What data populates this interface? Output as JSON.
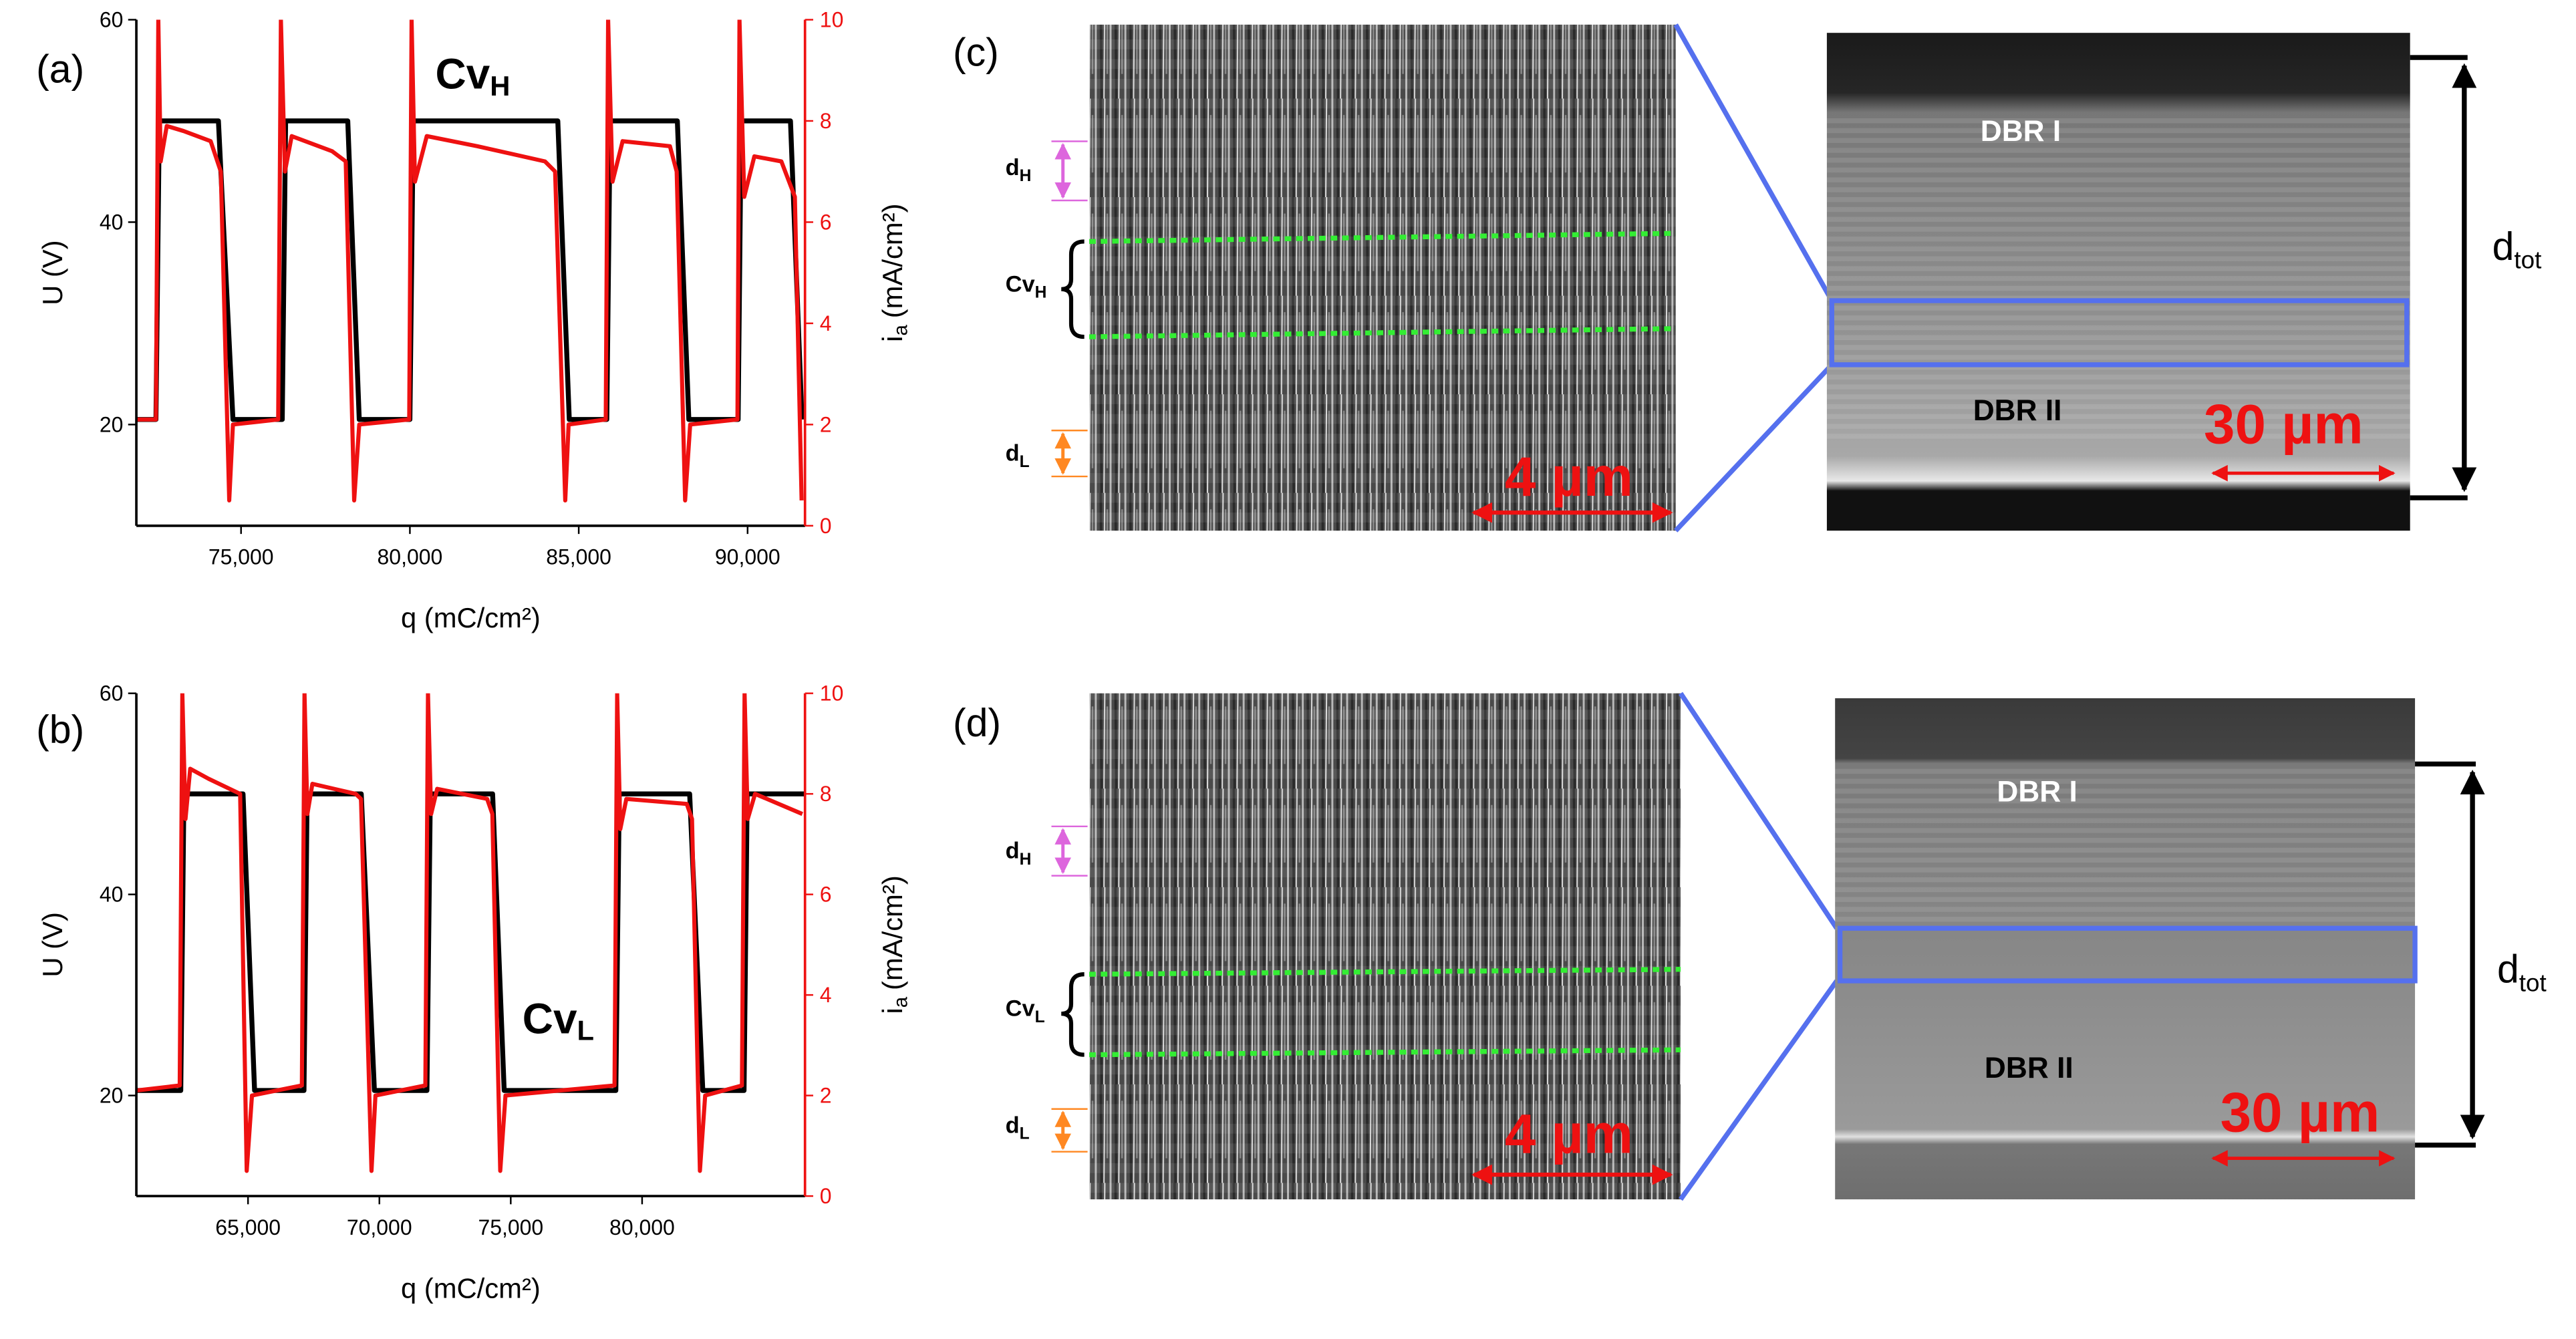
{
  "chart_data": [
    {
      "type": "line",
      "panel_label": "(a)",
      "annotation": {
        "text": "Cv",
        "subscript": "H"
      },
      "x_label": "q (mC/cm²)",
      "y_label": "U (V)",
      "y2_label": {
        "symbol": "i",
        "subscript": "a",
        "unit": "(mA/cm²)"
      },
      "xlim": [
        71900,
        91700
      ],
      "xticks": [
        {
          "value": 75000,
          "label": "75,000"
        },
        {
          "value": 80000,
          "label": "80,000"
        },
        {
          "value": 85000,
          "label": "85,000"
        },
        {
          "value": 90000,
          "label": "90,000"
        }
      ],
      "ylim": [
        10,
        60
      ],
      "yticks": [
        20,
        40,
        60
      ],
      "y2lim": [
        0,
        10
      ],
      "y2ticks": [
        0,
        2,
        4,
        6,
        8,
        10
      ],
      "series": [
        {
          "color": "#000000",
          "axis": "y",
          "x": [
            71900,
            72480,
            72580,
            74330,
            74760,
            76220,
            76320,
            78160,
            78500,
            80000,
            80100,
            84380,
            84720,
            85830,
            85930,
            87920,
            88260,
            89720,
            89810,
            91270,
            91610
          ],
          "values": [
            20.5,
            20.5,
            50,
            50,
            20.5,
            20.5,
            50,
            50,
            20.5,
            20.5,
            50,
            50,
            20.5,
            20.5,
            50,
            50,
            20.5,
            20.5,
            50,
            50,
            20.5
          ]
        },
        {
          "color": "#ee1111",
          "axis": "y2",
          "x": [
            71900,
            72480,
            72550,
            72620,
            72800,
            73300,
            74100,
            74400,
            74650,
            74760,
            76100,
            76180,
            76300,
            76500,
            77700,
            78100,
            78350,
            78500,
            79980,
            80050,
            80150,
            80500,
            82000,
            84000,
            84300,
            84600,
            84700,
            85800,
            85870,
            86000,
            86300,
            87700,
            87900,
            88150,
            88300,
            89700,
            89760,
            89900,
            90200,
            91000,
            91400,
            91600
          ],
          "values": [
            2.1,
            2.1,
            10,
            7.2,
            7.9,
            7.8,
            7.6,
            7.0,
            0.5,
            2.0,
            2.1,
            10,
            7.0,
            7.7,
            7.4,
            7.2,
            0.5,
            2.0,
            2.1,
            10,
            6.8,
            7.7,
            7.5,
            7.2,
            7.0,
            0.5,
            2.0,
            2.1,
            10,
            6.8,
            7.6,
            7.5,
            7.0,
            0.5,
            2.0,
            2.1,
            10,
            6.5,
            7.3,
            7.2,
            6.5,
            0.5
          ]
        }
      ]
    },
    {
      "type": "line",
      "panel_label": "(b)",
      "annotation": {
        "text": "Cv",
        "subscript": "L"
      },
      "x_label": "q (mC/cm²)",
      "y_label": "U (V)",
      "y2_label": {
        "symbol": "i",
        "subscript": "a",
        "unit": "(mA/cm²)"
      },
      "xlim": [
        60750,
        86200
      ],
      "xticks": [
        {
          "value": 65000,
          "label": "65,000"
        },
        {
          "value": 70000,
          "label": "70,000"
        },
        {
          "value": 75000,
          "label": "75,000"
        },
        {
          "value": 80000,
          "label": "80,000"
        }
      ],
      "ylim": [
        10,
        60
      ],
      "yticks": [
        20,
        40,
        60
      ],
      "y2lim": [
        0,
        10
      ],
      "y2ticks": [
        0,
        2,
        4,
        6,
        8,
        10
      ],
      "series": [
        {
          "color": "#000000",
          "axis": "y",
          "x": [
            60750,
            62440,
            62560,
            64810,
            65250,
            67130,
            67250,
            69310,
            69810,
            71810,
            71940,
            74310,
            74750,
            79000,
            79130,
            81810,
            82310,
            83880,
            84000,
            86190
          ],
          "values": [
            20.5,
            20.5,
            50,
            50,
            20.5,
            20.5,
            50,
            50,
            20.5,
            20.5,
            50,
            50,
            20.5,
            20.5,
            50,
            50,
            20.5,
            20.5,
            50,
            50
          ]
        },
        {
          "color": "#ee1111",
          "axis": "y2",
          "x": [
            60750,
            62400,
            62500,
            62620,
            62800,
            63500,
            64700,
            64950,
            65150,
            67050,
            67150,
            67260,
            67450,
            69100,
            69300,
            69700,
            69850,
            71750,
            71850,
            71970,
            72200,
            74100,
            74300,
            74600,
            74800,
            78950,
            79050,
            79170,
            79400,
            81700,
            81900,
            82200,
            82400,
            83800,
            83900,
            84020,
            84300,
            86100
          ],
          "values": [
            2.1,
            2.2,
            10,
            7.5,
            8.5,
            8.3,
            8.0,
            0.5,
            2.0,
            2.2,
            10,
            7.6,
            8.2,
            8.0,
            7.9,
            0.5,
            2.0,
            2.2,
            10,
            7.6,
            8.1,
            7.9,
            7.6,
            0.5,
            2.0,
            2.2,
            10,
            7.3,
            7.9,
            7.8,
            7.5,
            0.5,
            2.0,
            2.2,
            10,
            7.5,
            8.0,
            7.6
          ]
        }
      ]
    }
  ],
  "panels": [
    {
      "label": "(c)",
      "d_high": {
        "text": "d",
        "subscript": "H"
      },
      "cavity": {
        "text": "Cv",
        "subscript": "H"
      },
      "d_low": {
        "text": "d",
        "subscript": "L"
      },
      "scale_left": "4 µm",
      "top_layer": "DBR I",
      "bottom_layer": "DBR II",
      "scale_right": "30 µm",
      "total": {
        "text": "d",
        "subscript": "tot"
      }
    },
    {
      "label": "(d)",
      "d_high": {
        "text": "d",
        "subscript": "H"
      },
      "cavity": {
        "text": "Cv",
        "subscript": "L"
      },
      "d_low": {
        "text": "d",
        "subscript": "L"
      },
      "scale_left": "4 µm",
      "top_layer": "DBR I",
      "bottom_layer": "DBR II",
      "scale_right": "30 µm",
      "total": {
        "text": "d",
        "subscript": "tot"
      }
    }
  ]
}
